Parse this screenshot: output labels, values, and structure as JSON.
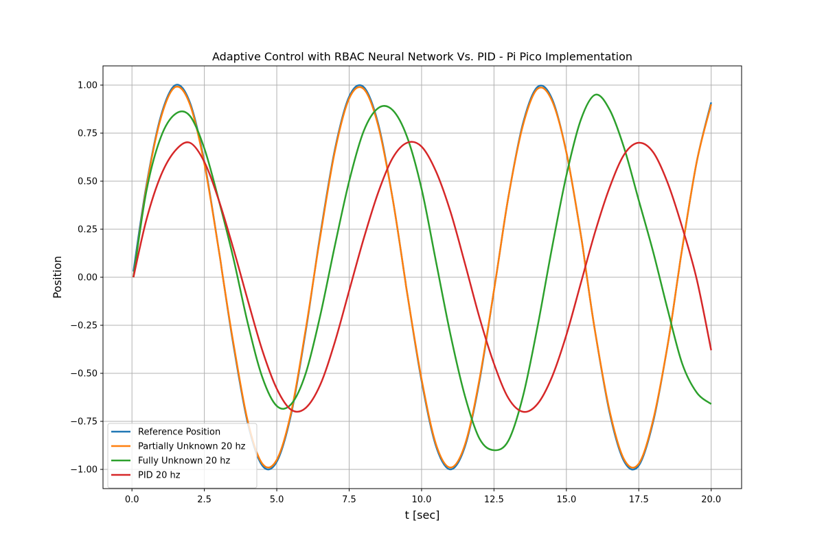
{
  "chart_data": {
    "type": "line",
    "title": "Adaptive Control with RBAC Neural Network Vs. PID - Pi Pico Implementation",
    "xlabel": "t [sec]",
    "ylabel": "Position",
    "xlim": [
      -1.0,
      21.05
    ],
    "ylim": [
      -1.1,
      1.1
    ],
    "xticks": [
      0.0,
      2.5,
      5.0,
      7.5,
      10.0,
      12.5,
      15.0,
      17.5,
      20.0
    ],
    "xtick_labels": [
      "0.0",
      "2.5",
      "5.0",
      "7.5",
      "10.0",
      "12.5",
      "15.0",
      "17.5",
      "20.0"
    ],
    "yticks": [
      1.0,
      0.75,
      0.5,
      0.25,
      0.0,
      -0.25,
      -0.5,
      -0.75,
      -1.0
    ],
    "ytick_labels": [
      "1.00",
      "0.75",
      "0.50",
      "0.25",
      "0.00",
      "−0.25",
      "−0.50",
      "−0.75",
      "−1.00"
    ],
    "grid": true,
    "legend_position": "lower-left",
    "series": [
      {
        "name": "Reference Position",
        "color": "#1f77b4",
        "x": [
          0.05,
          0.5,
          1.0,
          1.5,
          2.0,
          2.5,
          3.0,
          3.14,
          3.5,
          4.0,
          4.5,
          5.0,
          5.5,
          6.0,
          6.28,
          6.5,
          7.0,
          7.5,
          8.0,
          8.5,
          9.0,
          9.42,
          9.5,
          10.0,
          10.5,
          11.0,
          11.5,
          12.0,
          12.57,
          13.0,
          13.5,
          14.0,
          14.5,
          15.0,
          15.5,
          15.71,
          16.0,
          16.5,
          17.0,
          17.5,
          18.0,
          18.5,
          18.85,
          19.0,
          19.5,
          20.0
        ],
        "y": [
          0.03,
          0.48,
          0.84,
          1.0,
          0.91,
          0.6,
          0.14,
          0.0,
          -0.35,
          -0.76,
          -0.98,
          -0.96,
          -0.71,
          -0.28,
          0.0,
          0.22,
          0.66,
          0.94,
          0.99,
          0.8,
          0.41,
          0.0,
          -0.08,
          -0.54,
          -0.88,
          -1.0,
          -0.88,
          -0.54,
          0.0,
          0.42,
          0.8,
          0.99,
          0.93,
          0.65,
          0.22,
          0.0,
          -0.29,
          -0.71,
          -0.96,
          -0.98,
          -0.75,
          -0.35,
          0.0,
          0.15,
          0.6,
          0.91
        ]
      },
      {
        "name": "Partially Unknown 20 hz",
        "color": "#ff7f0e",
        "x": [
          0.05,
          0.5,
          1.0,
          1.5,
          2.0,
          2.5,
          3.0,
          3.14,
          3.5,
          4.0,
          4.5,
          5.0,
          5.5,
          6.0,
          6.28,
          6.5,
          7.0,
          7.5,
          8.0,
          8.5,
          9.0,
          9.42,
          9.5,
          10.0,
          10.5,
          11.0,
          11.5,
          12.0,
          12.57,
          13.0,
          13.5,
          14.0,
          14.5,
          15.0,
          15.5,
          15.71,
          16.0,
          16.5,
          17.0,
          17.5,
          18.0,
          18.5,
          18.85,
          19.0,
          19.5,
          20.0
        ],
        "y": [
          0.0,
          0.47,
          0.83,
          0.99,
          0.9,
          0.59,
          0.14,
          0.0,
          -0.34,
          -0.75,
          -0.97,
          -0.95,
          -0.7,
          -0.27,
          0.0,
          0.21,
          0.65,
          0.93,
          0.98,
          0.79,
          0.41,
          0.0,
          -0.08,
          -0.53,
          -0.87,
          -0.99,
          -0.87,
          -0.53,
          0.0,
          0.42,
          0.79,
          0.98,
          0.92,
          0.65,
          0.22,
          0.0,
          -0.29,
          -0.7,
          -0.95,
          -0.97,
          -0.74,
          -0.35,
          0.0,
          0.15,
          0.6,
          0.9
        ]
      },
      {
        "name": "Fully Unknown 20 hz",
        "color": "#2ca02c",
        "x": [
          0.05,
          0.5,
          1.0,
          1.5,
          2.0,
          2.5,
          3.0,
          3.5,
          4.0,
          4.5,
          5.0,
          5.5,
          6.0,
          6.5,
          7.0,
          7.5,
          8.0,
          8.5,
          9.0,
          9.5,
          10.0,
          10.5,
          11.0,
          11.5,
          12.0,
          12.5,
          13.0,
          13.5,
          14.0,
          14.5,
          15.0,
          15.5,
          16.0,
          16.5,
          17.0,
          17.5,
          18.0,
          18.5,
          19.0,
          19.5,
          20.0
        ],
        "y": [
          0.0,
          0.45,
          0.73,
          0.85,
          0.84,
          0.67,
          0.4,
          0.1,
          -0.24,
          -0.52,
          -0.67,
          -0.66,
          -0.5,
          -0.2,
          0.16,
          0.5,
          0.76,
          0.88,
          0.87,
          0.73,
          0.46,
          0.08,
          -0.3,
          -0.62,
          -0.84,
          -0.9,
          -0.85,
          -0.62,
          -0.26,
          0.15,
          0.53,
          0.82,
          0.95,
          0.87,
          0.67,
          0.4,
          0.13,
          -0.17,
          -0.45,
          -0.6,
          -0.66
        ]
      },
      {
        "name": "PID 20 hz",
        "color": "#d62728",
        "x": [
          0.05,
          0.5,
          1.0,
          1.5,
          2.0,
          2.5,
          3.0,
          3.5,
          4.0,
          4.5,
          5.0,
          5.5,
          6.0,
          6.5,
          7.0,
          7.5,
          8.0,
          8.5,
          9.0,
          9.5,
          10.0,
          10.5,
          11.0,
          11.5,
          12.0,
          12.5,
          13.0,
          13.5,
          14.0,
          14.5,
          15.0,
          15.5,
          16.0,
          16.5,
          17.0,
          17.5,
          18.0,
          18.5,
          19.0,
          19.5,
          20.0
        ],
        "y": [
          0.0,
          0.3,
          0.53,
          0.66,
          0.7,
          0.6,
          0.4,
          0.15,
          -0.12,
          -0.38,
          -0.58,
          -0.69,
          -0.68,
          -0.56,
          -0.34,
          -0.07,
          0.2,
          0.44,
          0.62,
          0.7,
          0.68,
          0.55,
          0.34,
          0.07,
          -0.21,
          -0.45,
          -0.63,
          -0.7,
          -0.66,
          -0.52,
          -0.3,
          -0.03,
          0.24,
          0.47,
          0.64,
          0.7,
          0.65,
          0.49,
          0.26,
          -0.01,
          -0.38
        ]
      }
    ]
  }
}
